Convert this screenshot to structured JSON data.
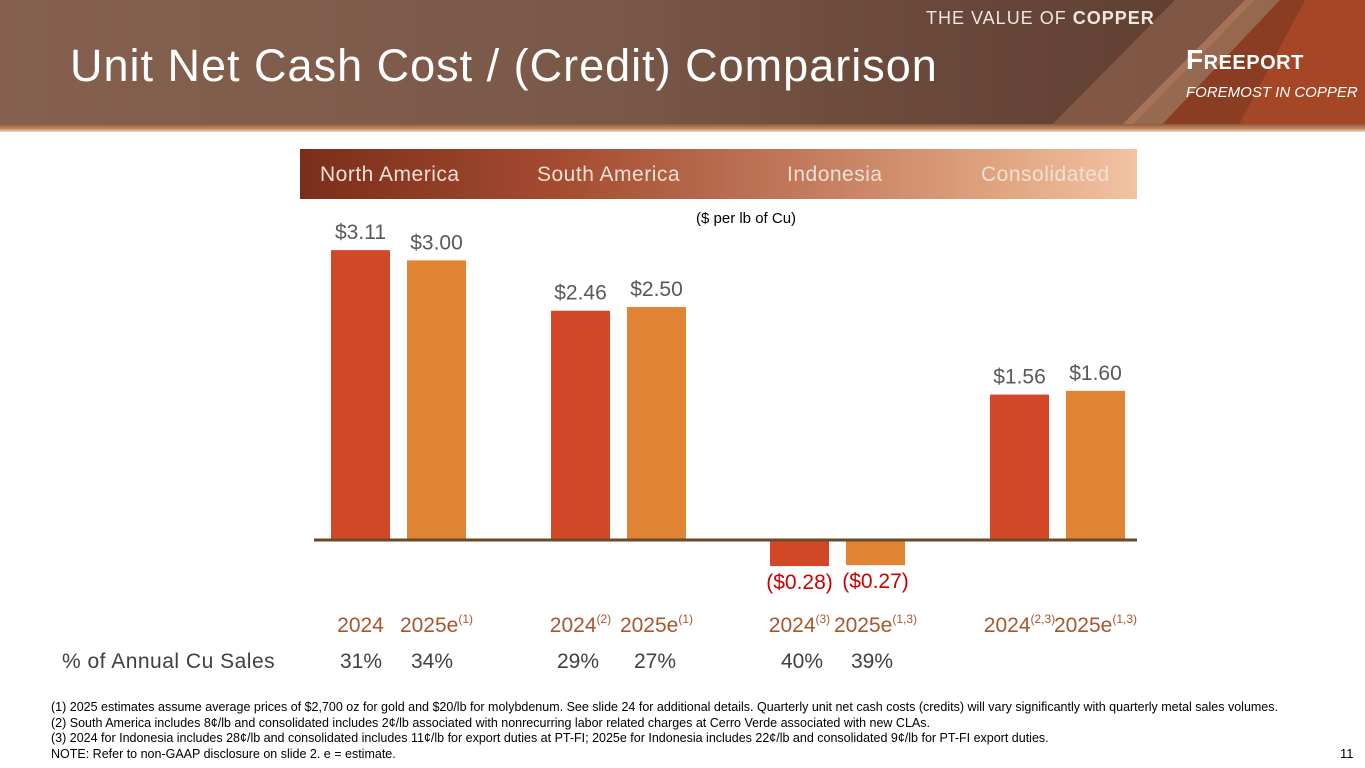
{
  "header": {
    "tagline_prefix": "THE VALUE OF",
    "tagline_bold": "COPPER",
    "title": "Unit Net Cash Cost / (Credit) Comparison",
    "logo_name": "Freeport",
    "logo_tagline": "FOREMOST IN COPPER"
  },
  "regions": [
    "North America",
    "South America",
    "Indonesia",
    "Consolidated"
  ],
  "unit_label": "($ per lb of Cu)",
  "colors": {
    "bar_2024": "#d24726",
    "bar_2025e": "#e18433",
    "axis": "#6b4a2a",
    "negative_label": "#cc0000",
    "category_label": "#a9562e"
  },
  "chart_data": {
    "type": "bar",
    "title": "Unit Net Cash Cost / (Credit) Comparison",
    "ylabel": "$ per lb of Cu",
    "ylim": [
      -0.35,
      3.2
    ],
    "series_names": [
      "2024",
      "2025e"
    ],
    "groups": [
      {
        "region": "North America",
        "bars": [
          {
            "series": "2024",
            "value": 3.11,
            "label": "$3.11",
            "cat": "2024",
            "sup": ""
          },
          {
            "series": "2025e",
            "value": 3.0,
            "label": "$3.00",
            "cat": "2025e",
            "sup": "(1)"
          }
        ]
      },
      {
        "region": "South America",
        "bars": [
          {
            "series": "2024",
            "value": 2.46,
            "label": "$2.46",
            "cat": "2024",
            "sup": "(2)"
          },
          {
            "series": "2025e",
            "value": 2.5,
            "label": "$2.50",
            "cat": "2025e",
            "sup": "(1)"
          }
        ]
      },
      {
        "region": "Indonesia",
        "bars": [
          {
            "series": "2024",
            "value": -0.28,
            "label": "($0.28)",
            "cat": "2024",
            "sup": "(3)"
          },
          {
            "series": "2025e",
            "value": -0.27,
            "label": "($0.27)",
            "cat": "2025e",
            "sup": "(1,3)"
          }
        ]
      },
      {
        "region": "Consolidated",
        "bars": [
          {
            "series": "2024",
            "value": 1.56,
            "label": "$1.56",
            "cat": "2024",
            "sup": "(2,3)"
          },
          {
            "series": "2025e",
            "value": 1.6,
            "label": "$1.60",
            "cat": "2025e",
            "sup": "(1,3)"
          }
        ]
      }
    ]
  },
  "annual_sales": {
    "heading": "% of Annual Cu Sales",
    "values": [
      "31%",
      "34%",
      "29%",
      "27%",
      "40%",
      "39%"
    ]
  },
  "footnotes": [
    "(1)   2025 estimates assume average prices of $2,700 oz for gold and $20/lb for molybdenum. See slide 24 for additional details. Quarterly unit net cash costs (credits) will vary significantly with quarterly metal sales volumes.",
    "(2)   South America includes 8¢/lb and consolidated includes 2¢/lb associated with nonrecurring labor related charges at Cerro Verde associated with new CLAs.",
    "(3)   2024 for Indonesia includes 28¢/lb and consolidated includes 11¢/lb for export duties at PT-FI; 2025e for Indonesia includes 22¢/lb and consolidated 9¢/lb for PT-FI export duties.",
    "NOTE: Refer to non-GAAP disclosure on slide 2. e = estimate."
  ],
  "page_number": "11"
}
